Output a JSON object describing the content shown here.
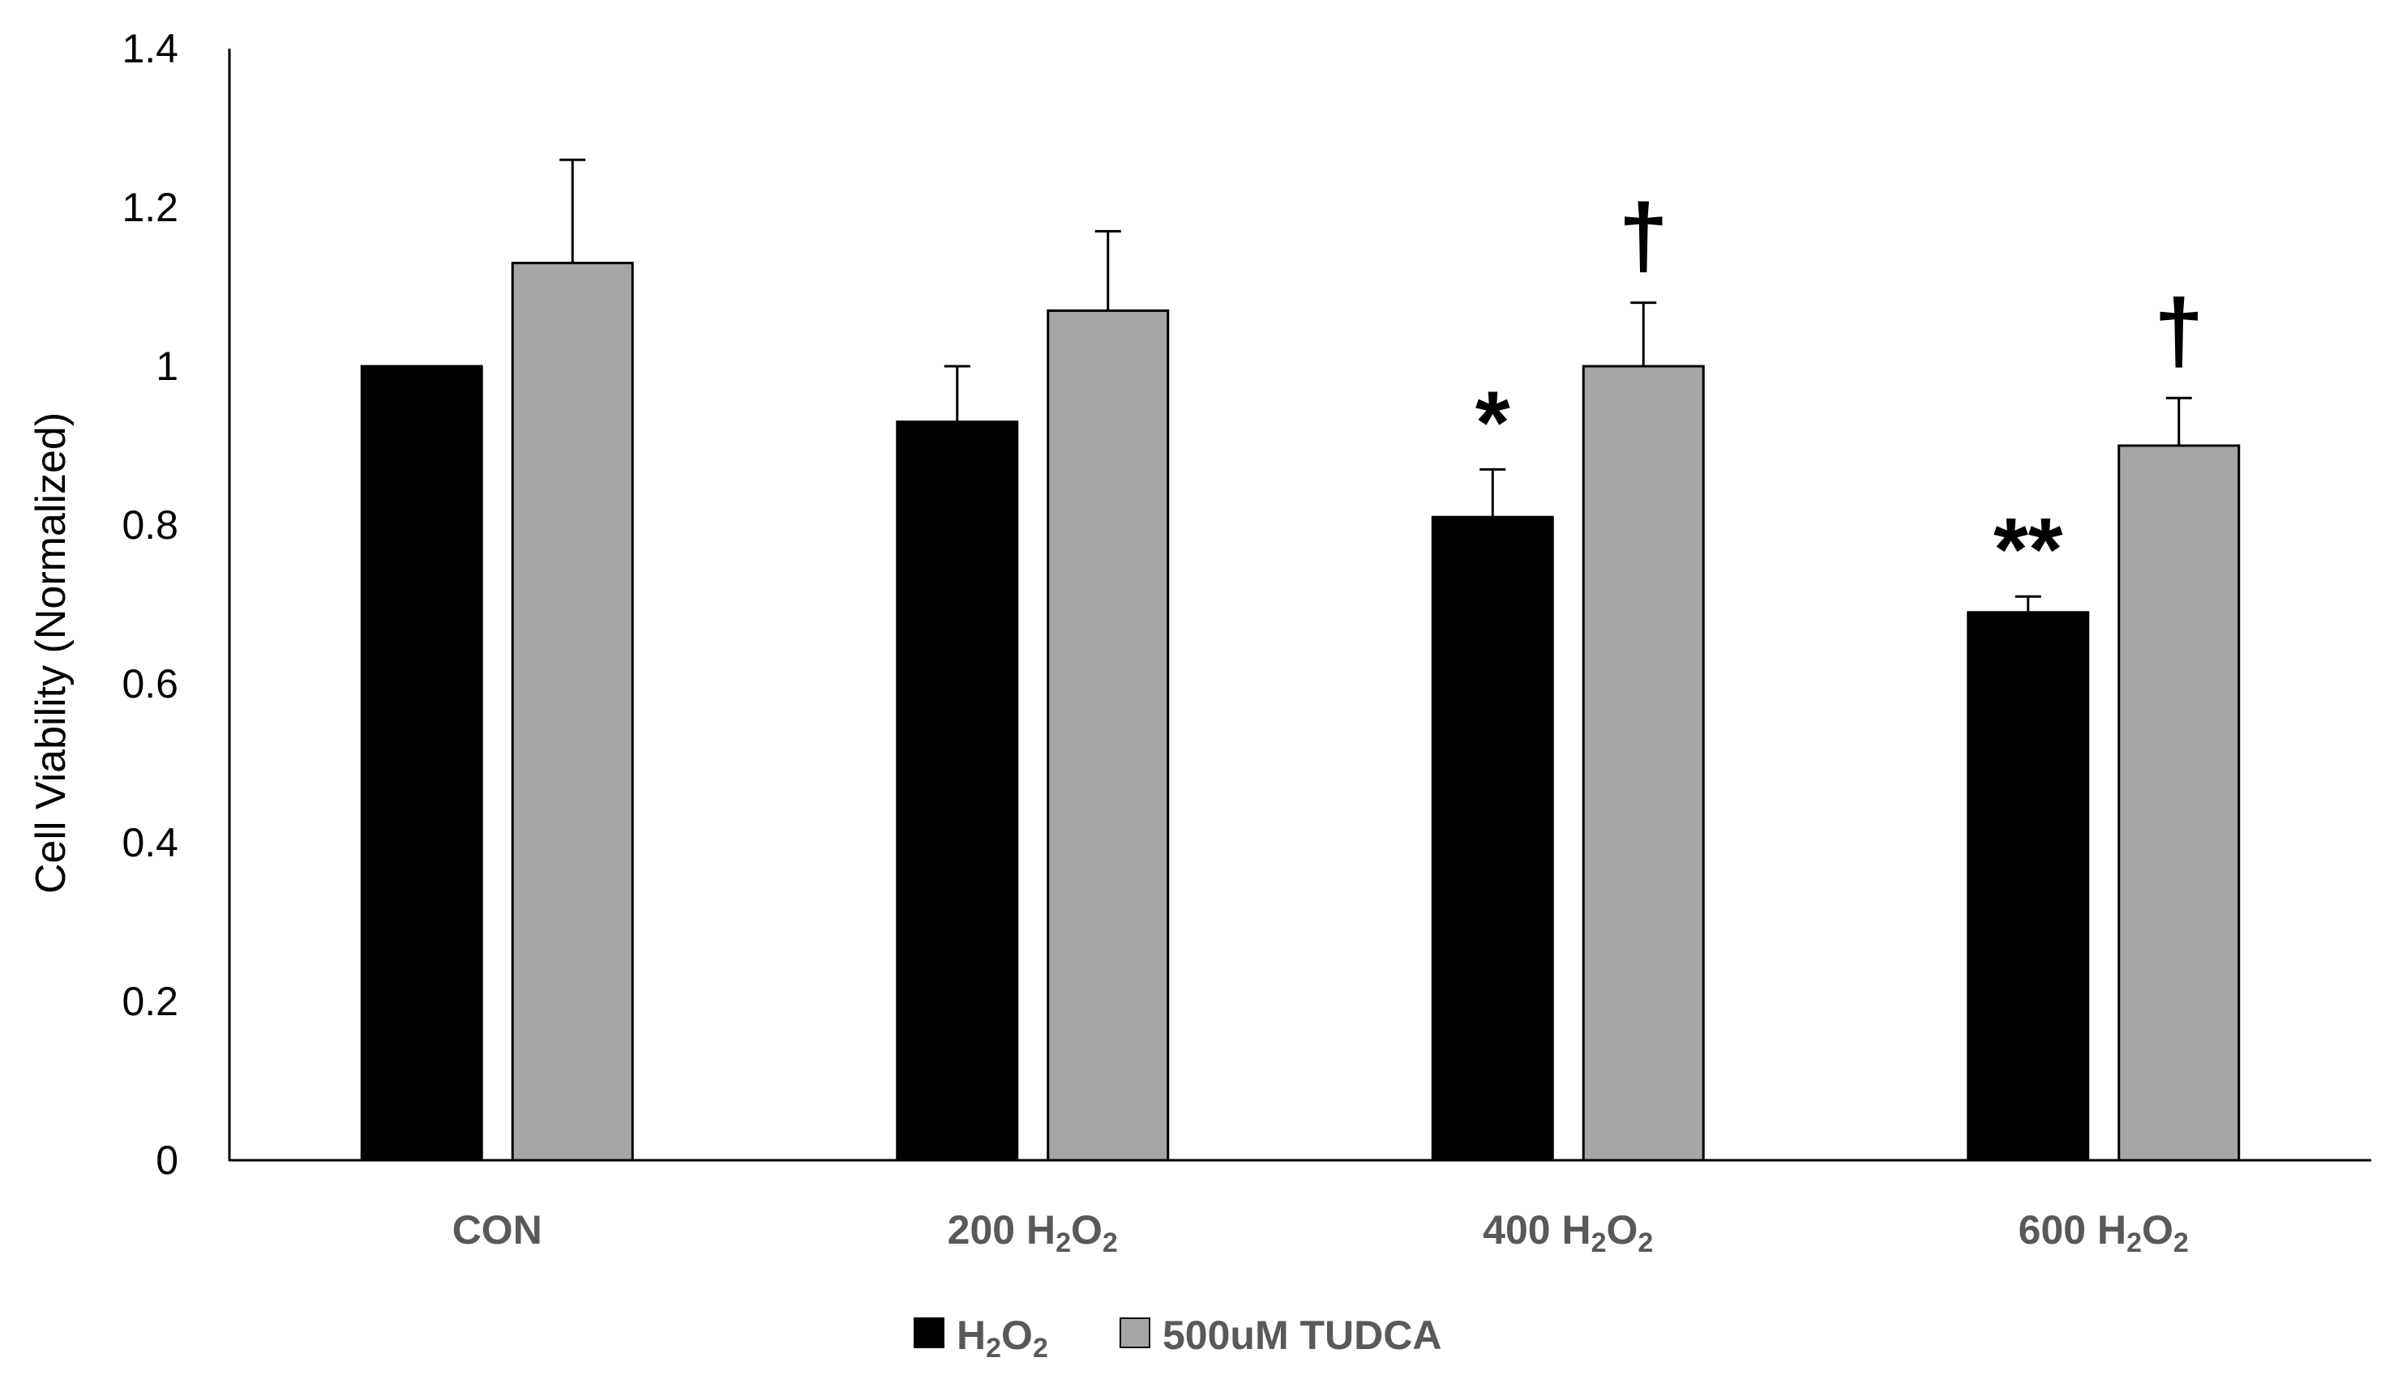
{
  "chart_data": {
    "type": "bar",
    "title": "",
    "xlabel": "",
    "ylabel": "Cell Viability (Normalized)",
    "ylim": [
      0,
      1.4
    ],
    "yticks": [
      "0",
      "0.2",
      "0.4",
      "0.6",
      "0.8",
      "1",
      "1.2",
      "1.4"
    ],
    "categories": [
      "CON",
      "200 H2O2",
      "400 H2O2",
      "600 H2O2"
    ],
    "category_labels": [
      {
        "prefix": "CON",
        "has_h2o2": false
      },
      {
        "prefix": "200 ",
        "has_h2o2": true
      },
      {
        "prefix": "400 ",
        "has_h2o2": true
      },
      {
        "prefix": "600 ",
        "has_h2o2": true
      }
    ],
    "series": [
      {
        "name": "H2O2",
        "color": "#000000",
        "values": [
          1.0,
          0.93,
          0.81,
          0.69
        ],
        "errors": [
          0.0,
          0.07,
          0.06,
          0.02
        ],
        "annotations": [
          "",
          "",
          "*",
          "**"
        ]
      },
      {
        "name": "500uM TUDCA",
        "color": "#a6a6a6",
        "values": [
          1.13,
          1.07,
          1.0,
          0.9
        ],
        "errors": [
          0.13,
          0.1,
          0.08,
          0.06
        ],
        "annotations": [
          "",
          "",
          "†",
          "†"
        ]
      }
    ],
    "legend": {
      "position": "bottom-center",
      "items": [
        {
          "label": "H",
          "sub": "2",
          "mid": "O",
          "sub2": "2",
          "color": "#000000"
        },
        {
          "label": "500uM TUDCA",
          "color": "#a6a6a6"
        }
      ]
    },
    "h2o2_text": {
      "h": "H",
      "two": "2",
      "o": "O"
    }
  }
}
